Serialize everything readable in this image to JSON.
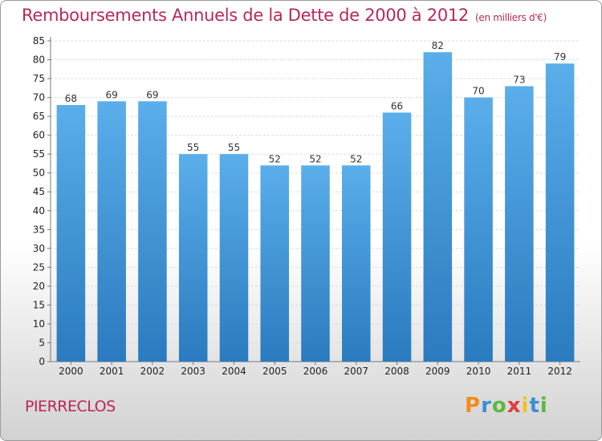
{
  "header": {
    "title": "Remboursements Annuels de la Dette de 2000 à 2012",
    "unit": "(en milliers d'€)"
  },
  "footer": {
    "commune": "PIERRECLOS",
    "logo": "Proxiti"
  },
  "colors": {
    "title": "#b8285a",
    "bar_top": "#5aaeea",
    "bar_bottom": "#2a7bbf",
    "logo": [
      "#f28c1e",
      "#3a8fd6",
      "#5db83a",
      "#e23a3a",
      "#f2c21e",
      "#3a8fd6",
      "#5db83a"
    ]
  },
  "chart_data": {
    "type": "bar",
    "categories": [
      "2000",
      "2001",
      "2002",
      "2003",
      "2004",
      "2005",
      "2006",
      "2007",
      "2008",
      "2009",
      "2010",
      "2011",
      "2012"
    ],
    "values": [
      68,
      69,
      69,
      55,
      55,
      52,
      52,
      52,
      66,
      82,
      70,
      73,
      79
    ],
    "title": "Remboursements Annuels de la Dette de 2000 à 2012",
    "xlabel": "",
    "ylabel": "",
    "ylim": [
      0,
      85
    ],
    "ytick_step": 5,
    "grid": true,
    "data_labels": true
  }
}
